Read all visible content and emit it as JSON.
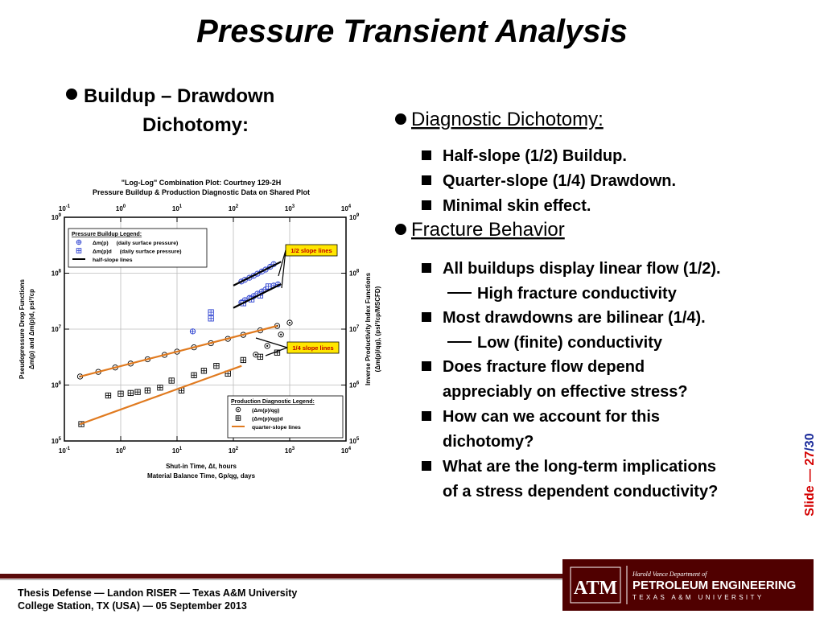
{
  "title": "Pressure Transient Analysis",
  "left_heading": [
    "Buildup – Drawdown",
    "Dichotomy:"
  ],
  "chart_data": {
    "type": "scatter",
    "title": [
      "\"Log-Log\" Combination Plot: Courtney 129-2H",
      "Pressure Buildup & Production Diagnostic Data on Shared Plot"
    ],
    "xlabel": [
      "Shut-in Time, Δt, hours",
      "Material Balance Time, Gp/qg, days"
    ],
    "ylabel": [
      "Pseudopressure Drop Functions",
      "Δm(p) and Δm(p)d, psi²/cp"
    ],
    "y2label": [
      "Inverse Productivity Index Functions",
      "(Δm(p)/qg), (psi²/cp/MSCFD)"
    ],
    "xscale": "log",
    "yscale": "log",
    "grid": true,
    "xlim": [
      0.1,
      10000
    ],
    "ylim": [
      100000,
      1000000000
    ],
    "y2lim": [
      100000,
      1000000000
    ],
    "xticks": [
      {
        "value": 0.1,
        "label": "10",
        "exponent": "-1"
      },
      {
        "value": 1,
        "label": "10",
        "exponent": "0"
      },
      {
        "value": 10,
        "label": "10",
        "exponent": "1"
      },
      {
        "value": 100,
        "label": "10",
        "exponent": "2"
      },
      {
        "value": 1000,
        "label": "10",
        "exponent": "3"
      },
      {
        "value": 10000,
        "label": "10",
        "exponent": "4"
      }
    ],
    "yticks": [
      {
        "value": 100000,
        "label": "10",
        "exponent": "5"
      },
      {
        "value": 1000000,
        "label": "10",
        "exponent": "6"
      },
      {
        "value": 10000000,
        "label": "10",
        "exponent": "7"
      },
      {
        "value": 100000000,
        "label": "10",
        "exponent": "8"
      },
      {
        "value": 1000000000,
        "label": "10",
        "exponent": "9"
      }
    ],
    "y2ticks": [
      {
        "value": 100000,
        "label": "10",
        "exponent": "5"
      },
      {
        "value": 1000000,
        "label": "10",
        "exponent": "6"
      },
      {
        "value": 10000000,
        "label": "10",
        "exponent": "7"
      },
      {
        "value": 100000000,
        "label": "10",
        "exponent": "8"
      },
      {
        "value": 1000000000,
        "label": "10",
        "exponent": "9"
      }
    ],
    "legends": [
      {
        "title": "Pressure Buildup Legend:",
        "corner": "upper left",
        "series": [
          {
            "name": "Δm(p)",
            "description": "(daily surface pressure)",
            "marker": "circle-plus",
            "color": "#2a3fd0",
            "x": [
              19,
              139,
              160,
              193,
              230,
              268,
              320,
              373,
              450,
              520,
              139,
              160,
              193,
              230,
              268,
              320,
              373,
              450,
              520,
              620
            ],
            "values": [
              9100000,
              71000000,
              76000000,
              83000000,
              90000000,
              98000000,
              107000000,
              116000000,
              130000000,
              145000000,
              30000000,
              33000000,
              36000000,
              39000000,
              43000000,
              47000000,
              51000000,
              56000000,
              60000000,
              63000000
            ]
          },
          {
            "name": "Δm(p)d",
            "description": "(daily surface pressure)",
            "marker": "box-plus",
            "color": "#2a3fd0",
            "x": [
              40,
              40,
              150,
              210,
              300,
              420
            ],
            "values": [
              20000000,
              15500000,
              29000000,
              34000000,
              40000000,
              58000000
            ]
          },
          {
            "name": "half-slope lines",
            "marker": "line",
            "color": "#000000",
            "x": [
              100,
              700,
              null,
              100,
              700
            ],
            "values": [
              60000000,
              160000000,
              null,
              24000000,
              64000000
            ]
          }
        ]
      },
      {
        "title": "Production Diagnostic Legend:",
        "corner": "lower right",
        "series": [
          {
            "name": "(Δm(p)/qg)",
            "marker": "circle-dot",
            "color": "#000000",
            "x": [
              0.19,
              0.4,
              0.8,
              1.5,
              3,
              6,
              10,
              20,
              40,
              80,
              150,
              300,
              600,
              1000,
              250,
              400,
              700
            ],
            "values": [
              1420000,
              1720000,
              2060000,
              2420000,
              2890000,
              3460000,
              3950000,
              4720000,
              5600000,
              6700000,
              7900000,
              9500000,
              11400000,
              13000000,
              3500000,
              5000000,
              8000000
            ]
          },
          {
            "name": "(Δm(p)/qg)d",
            "marker": "box-plus",
            "color": "#000000",
            "x": [
              0.2,
              0.6,
              1,
              1.5,
              2,
              3,
              5,
              8,
              12,
              20,
              30,
              50,
              80,
              150,
              300,
              600
            ],
            "values": [
              200000,
              650000,
              700000,
              720000,
              750000,
              800000,
              900000,
              1200000,
              800000,
              1500000,
              1800000,
              2200000,
              1600000,
              2800000,
              3200000,
              3800000
            ]
          },
          {
            "name": "quarter-slope lines",
            "marker": "line",
            "color": "#e07a1f",
            "x": [
              0.19,
              600,
              null,
              0.19,
              140
            ],
            "values": [
              1420000,
              11400000,
              null,
              200000,
              2200000
            ]
          }
        ]
      }
    ],
    "annotations": [
      "1/2 slope lines",
      "1/4 slope lines"
    ]
  },
  "right": [
    {
      "heading": "Diagnostic Dichotomy:",
      "items": [
        {
          "lines": [
            "Half-slope (1/2) Buildup."
          ]
        },
        {
          "lines": [
            "Quarter-slope (1/4) Drawdown."
          ]
        },
        {
          "lines": [
            "Minimal skin effect."
          ]
        }
      ]
    },
    {
      "heading": "Fracture Behavior",
      "items": [
        {
          "lines": [
            "All buildups display linear flow (1/2)."
          ],
          "sub": "High fracture conductivity"
        },
        {
          "lines": [
            "Most drawdowns are bilinear (1/4)."
          ],
          "sub": "Low (finite) conductivity"
        },
        {
          "lines": [
            "Does fracture flow depend",
            "appreciably on effective stress?"
          ]
        },
        {
          "lines": [
            "How can we account for this",
            "dichotomy?"
          ]
        },
        {
          "lines": [
            "What are the long-term implications",
            "of a stress dependent conductivity?"
          ]
        }
      ]
    }
  ],
  "slide": {
    "prefix": "Slide —",
    "current": 27,
    "divider": "/",
    "total": 30
  },
  "footer": [
    "Thesis Defense — Landon RISER — Texas A&M University",
    "College Station, TX (USA) — 05 September 2013"
  ],
  "logo": {
    "mark": "ATM",
    "dept": "Harold Vance Department of",
    "name": "PETROLEUM ENGINEERING",
    "university": "TEXAS A&M UNIVERSITY"
  }
}
